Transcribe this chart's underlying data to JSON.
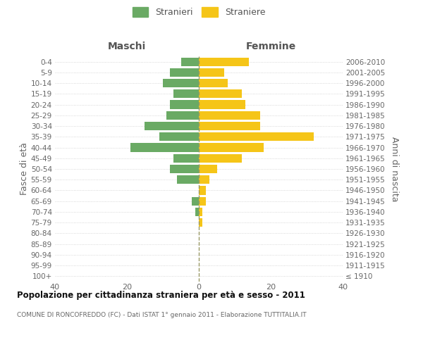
{
  "age_groups": [
    "100+",
    "95-99",
    "90-94",
    "85-89",
    "80-84",
    "75-79",
    "70-74",
    "65-69",
    "60-64",
    "55-59",
    "50-54",
    "45-49",
    "40-44",
    "35-39",
    "30-34",
    "25-29",
    "20-24",
    "15-19",
    "10-14",
    "5-9",
    "0-4"
  ],
  "birth_years": [
    "≤ 1910",
    "1911-1915",
    "1916-1920",
    "1921-1925",
    "1926-1930",
    "1931-1935",
    "1936-1940",
    "1941-1945",
    "1946-1950",
    "1951-1955",
    "1956-1960",
    "1961-1965",
    "1966-1970",
    "1971-1975",
    "1976-1980",
    "1981-1985",
    "1986-1990",
    "1991-1995",
    "1996-2000",
    "2001-2005",
    "2006-2010"
  ],
  "maschi": [
    0,
    0,
    0,
    0,
    0,
    0,
    1,
    2,
    0,
    6,
    8,
    7,
    19,
    11,
    15,
    9,
    8,
    7,
    10,
    8,
    5
  ],
  "femmine": [
    0,
    0,
    0,
    0,
    0,
    1,
    1,
    2,
    2,
    3,
    5,
    12,
    18,
    32,
    17,
    17,
    13,
    12,
    8,
    7,
    14
  ],
  "maschi_color": "#6aaa64",
  "femmine_color": "#f5c518",
  "title": "Popolazione per cittadinanza straniera per età e sesso - 2011",
  "subtitle": "COMUNE DI RONCOFREDDO (FC) - Dati ISTAT 1° gennaio 2011 - Elaborazione TUTTITALIA.IT",
  "label_maschi": "Maschi",
  "label_femmine": "Femmine",
  "ylabel_left": "Fasce di età",
  "ylabel_right": "Anni di nascita",
  "legend_stranieri": "Stranieri",
  "legend_straniere": "Straniere",
  "xlim": 40,
  "background_color": "#ffffff",
  "grid_color": "#cccccc"
}
